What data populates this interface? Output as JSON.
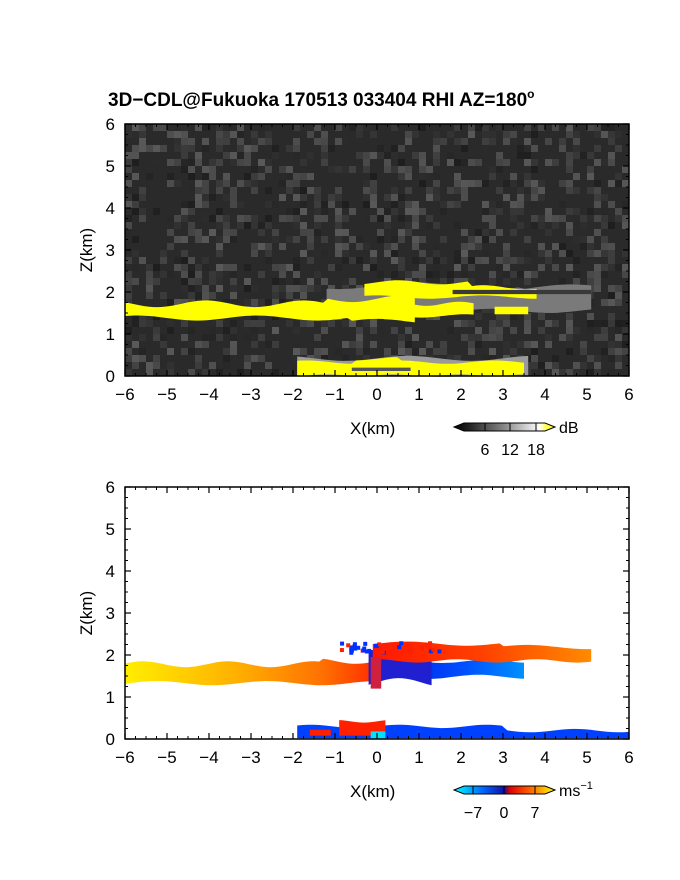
{
  "title": "3D−CDL@Fukuoka 170513 033404 RHI AZ=180°",
  "title_main": "3D−CDL@Fukuoka 170513 033404 RHI AZ=180",
  "title_sup": "o",
  "chart_data": [
    {
      "type": "heatmap",
      "quantity": "SNR",
      "xlabel": "X(km)",
      "ylabel": "Z(km)",
      "xlim": [
        -6,
        6
      ],
      "ylim": [
        0,
        6
      ],
      "xticks": [
        "−6",
        "−5",
        "−4",
        "−3",
        "−2",
        "−1",
        "0",
        "1",
        "2",
        "3",
        "4",
        "5",
        "6"
      ],
      "yticks": [
        "0",
        "1",
        "2",
        "3",
        "4",
        "5",
        "6"
      ],
      "background": "noise, dark gray",
      "colorbar": {
        "unit": "dB",
        "ticks": [
          "6",
          "12",
          "18"
        ],
        "range": [
          0,
          21
        ],
        "colors": [
          "#000000",
          "#ffffff",
          "#ffff00"
        ]
      },
      "features": [
        {
          "name": "cloud layer",
          "x": [
            -6.0,
            3.6
          ],
          "z": [
            1.2,
            2.3
          ],
          "value_db": 20
        },
        {
          "name": "low layer",
          "x": [
            -1.9,
            3.5
          ],
          "z": [
            0.0,
            0.4
          ],
          "value_db": 20
        }
      ]
    },
    {
      "type": "heatmap",
      "quantity": "radial velocity",
      "xlabel": "X(km)",
      "ylabel": "Z(km)",
      "xlim": [
        -6,
        6
      ],
      "ylim": [
        0,
        6
      ],
      "xticks": [
        "−6",
        "−5",
        "−4",
        "−3",
        "−2",
        "−1",
        "0",
        "1",
        "2",
        "3",
        "4",
        "5",
        "6"
      ],
      "yticks": [
        "0",
        "1",
        "2",
        "3",
        "4",
        "5",
        "6"
      ],
      "colorbar": {
        "unit": "ms",
        "unit_exp": "−1",
        "ticks": [
          "−7",
          "0",
          "7"
        ],
        "range": [
          -10,
          10
        ],
        "colors": [
          "#00ffff",
          "#0000ff",
          "#ff0000",
          "#ffff00"
        ]
      },
      "features": [
        {
          "name": "west layer",
          "x": [
            -6.0,
            -0.2
          ],
          "z": [
            1.3,
            1.8
          ],
          "velocity": [
            5,
            9
          ]
        },
        {
          "name": "upper east layer",
          "x": [
            0,
            5.1
          ],
          "z": [
            1.8,
            2.3
          ],
          "velocity": [
            2,
            5
          ]
        },
        {
          "name": "lower east layer",
          "x": [
            0,
            3.5
          ],
          "z": [
            1.4,
            1.8
          ],
          "velocity": [
            -7,
            -3
          ]
        },
        {
          "name": "near-surface layer",
          "x": [
            -1.9,
            6.0
          ],
          "z": [
            0.0,
            0.4
          ],
          "velocity": [
            -6,
            3
          ]
        }
      ]
    }
  ]
}
